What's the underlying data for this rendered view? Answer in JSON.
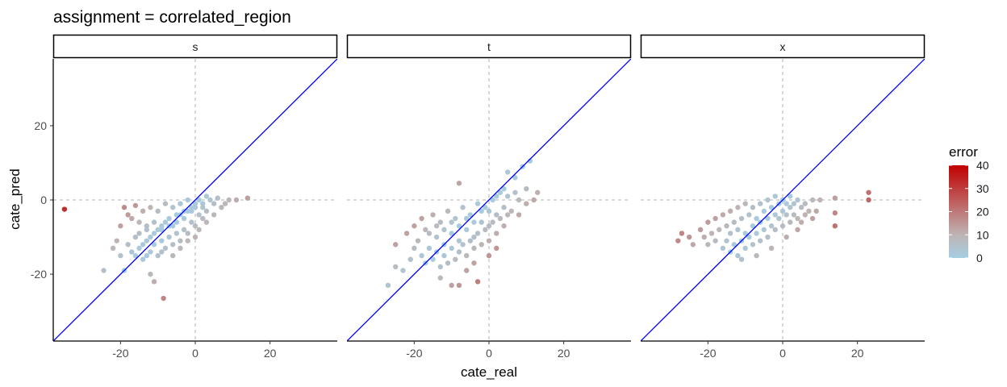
{
  "chart_data": {
    "type": "scatter",
    "title": "assignment = correlated_region",
    "xlabel": "cate_real",
    "ylabel": "cate_pred",
    "xlim": [
      -38,
      38
    ],
    "ylim": [
      -38,
      38
    ],
    "x_ticks": [
      -20,
      0,
      20
    ],
    "y_ticks": [
      -20,
      0,
      20
    ],
    "x_tick_labels": [
      "-20",
      "0",
      "20"
    ],
    "y_tick_labels": [
      "-20",
      "0",
      "20"
    ],
    "grid": false,
    "reference_lines": {
      "vertical_x": 0,
      "horizontal_y": 0,
      "diagonal": "y = x"
    },
    "diagonal_color": "#0000ff",
    "legend": {
      "title": "error",
      "placement": "right",
      "ticks": [
        0,
        10,
        20,
        30,
        40
      ],
      "tick_labels": [
        "0",
        "10",
        "20",
        "30",
        "40"
      ],
      "range": [
        0,
        40
      ],
      "gradient": [
        "#a6cee3",
        "#c00000"
      ]
    },
    "panels": [
      {
        "facet": "s",
        "points": [
          {
            "x": -35,
            "y": -2.5
          },
          {
            "x": -8.5,
            "y": -26.5
          },
          {
            "x": -24.5,
            "y": -19
          },
          {
            "x": -19,
            "y": -19
          },
          {
            "x": -12,
            "y": -20
          },
          {
            "x": -11,
            "y": -22
          },
          {
            "x": 14,
            "y": 0.5
          },
          {
            "x": 11,
            "y": 0
          },
          {
            "x": -20,
            "y": -7
          },
          {
            "x": -19,
            "y": -2
          },
          {
            "x": -18,
            "y": -4
          },
          {
            "x": -17,
            "y": -5
          },
          {
            "x": -16,
            "y": -1.5
          },
          {
            "x": -15,
            "y": -6
          },
          {
            "x": -14,
            "y": -3
          },
          {
            "x": -13,
            "y": -8
          },
          {
            "x": -12,
            "y": -2
          },
          {
            "x": -11,
            "y": -6
          },
          {
            "x": -10,
            "y": -3
          },
          {
            "x": -9,
            "y": -8
          },
          {
            "x": -8,
            "y": -1
          },
          {
            "x": -7,
            "y": -5
          },
          {
            "x": -6,
            "y": -2
          },
          {
            "x": -5,
            "y": -6
          },
          {
            "x": -4,
            "y": -1
          },
          {
            "x": -3,
            "y": -3
          },
          {
            "x": -2,
            "y": 0
          },
          {
            "x": -1,
            "y": -2
          },
          {
            "x": 0,
            "y": -1
          },
          {
            "x": 1,
            "y": 0
          },
          {
            "x": 2,
            "y": -1
          },
          {
            "x": 3,
            "y": 1
          },
          {
            "x": 4,
            "y": 0
          },
          {
            "x": 5,
            "y": -1
          },
          {
            "x": 6,
            "y": 0.5
          },
          {
            "x": 8,
            "y": -1
          },
          {
            "x": -18,
            "y": -12
          },
          {
            "x": -17,
            "y": -14
          },
          {
            "x": -16,
            "y": -10
          },
          {
            "x": -15,
            "y": -13
          },
          {
            "x": -14,
            "y": -16
          },
          {
            "x": -13,
            "y": -11
          },
          {
            "x": -12,
            "y": -14
          },
          {
            "x": -11,
            "y": -12
          },
          {
            "x": -10,
            "y": -15
          },
          {
            "x": -9,
            "y": -11
          },
          {
            "x": -8,
            "y": -13
          },
          {
            "x": -7,
            "y": -10
          },
          {
            "x": -6,
            "y": -12
          },
          {
            "x": -5,
            "y": -9
          },
          {
            "x": -4,
            "y": -11
          },
          {
            "x": -3,
            "y": -8
          },
          {
            "x": -2,
            "y": -9
          },
          {
            "x": -1,
            "y": -6
          },
          {
            "x": 0,
            "y": -7
          },
          {
            "x": 1,
            "y": -4
          },
          {
            "x": 2,
            "y": -5
          },
          {
            "x": 3,
            "y": -3
          },
          {
            "x": -15,
            "y": -9
          },
          {
            "x": -13,
            "y": -7
          },
          {
            "x": -11,
            "y": -9
          },
          {
            "x": -9,
            "y": -7
          },
          {
            "x": -7,
            "y": -7
          },
          {
            "x": -5,
            "y": -4
          },
          {
            "x": -3,
            "y": -5
          },
          {
            "x": -1,
            "y": -3
          },
          {
            "x": -12,
            "y": -10
          },
          {
            "x": -10,
            "y": -8
          },
          {
            "x": -8,
            "y": -6
          },
          {
            "x": -6,
            "y": -7
          },
          {
            "x": -4,
            "y": -4
          },
          {
            "x": -2,
            "y": -3
          },
          {
            "x": 0,
            "y": -2
          },
          {
            "x": 2,
            "y": -2
          },
          {
            "x": -14,
            "y": -12
          },
          {
            "x": -16,
            "y": -15
          },
          {
            "x": -13,
            "y": -15
          },
          {
            "x": -9,
            "y": -14
          },
          {
            "x": -6,
            "y": -15
          },
          {
            "x": -4,
            "y": -13
          },
          {
            "x": -2,
            "y": -11
          },
          {
            "x": 0,
            "y": -10
          },
          {
            "x": 1,
            "y": -8
          },
          {
            "x": 3,
            "y": -6
          },
          {
            "x": 5,
            "y": -4
          },
          {
            "x": 7,
            "y": -2
          },
          {
            "x": 9,
            "y": 0
          },
          {
            "x": -21,
            "y": -11
          },
          {
            "x": -20,
            "y": -15
          },
          {
            "x": -22,
            "y": -13
          }
        ]
      },
      {
        "facet": "t",
        "points": [
          {
            "x": -8,
            "y": 4.5
          },
          {
            "x": -27,
            "y": -23
          },
          {
            "x": -25,
            "y": -18
          },
          {
            "x": -23,
            "y": -19
          },
          {
            "x": -13,
            "y": -21
          },
          {
            "x": -10,
            "y": -23
          },
          {
            "x": -8,
            "y": -23
          },
          {
            "x": -3,
            "y": -22
          },
          {
            "x": 11,
            "y": 10.5
          },
          {
            "x": 9,
            "y": 9
          },
          {
            "x": 7,
            "y": 6
          },
          {
            "x": 5,
            "y": 7.5
          },
          {
            "x": 10,
            "y": 3
          },
          {
            "x": 12,
            "y": 0
          },
          {
            "x": 13,
            "y": 2
          },
          {
            "x": 10,
            "y": -1
          },
          {
            "x": 8,
            "y": -4
          },
          {
            "x": -25,
            "y": -12
          },
          {
            "x": -22,
            "y": -9
          },
          {
            "x": -20,
            "y": -7
          },
          {
            "x": -18,
            "y": -5
          },
          {
            "x": -19,
            "y": -11
          },
          {
            "x": -17,
            "y": -8
          },
          {
            "x": -16,
            "y": -13
          },
          {
            "x": -15,
            "y": -4
          },
          {
            "x": -14,
            "y": -10
          },
          {
            "x": -13,
            "y": -6
          },
          {
            "x": -12,
            "y": -12
          },
          {
            "x": -11,
            "y": -3
          },
          {
            "x": -10,
            "y": -9
          },
          {
            "x": -9,
            "y": -5
          },
          {
            "x": -8,
            "y": -11
          },
          {
            "x": -7,
            "y": -2
          },
          {
            "x": -6,
            "y": -8
          },
          {
            "x": -5,
            "y": -4
          },
          {
            "x": -4,
            "y": -10
          },
          {
            "x": -3,
            "y": -1
          },
          {
            "x": -2,
            "y": -6
          },
          {
            "x": -1,
            "y": -2
          },
          {
            "x": 0,
            "y": -7
          },
          {
            "x": 1,
            "y": 0
          },
          {
            "x": 2,
            "y": -4
          },
          {
            "x": 3,
            "y": 2
          },
          {
            "x": 4,
            "y": -2
          },
          {
            "x": 5,
            "y": 1
          },
          {
            "x": 6,
            "y": -3
          },
          {
            "x": 7,
            "y": 2
          },
          {
            "x": 8,
            "y": 0
          },
          {
            "x": -18,
            "y": -15
          },
          {
            "x": -17,
            "y": -17
          },
          {
            "x": -15,
            "y": -16
          },
          {
            "x": -14,
            "y": -14
          },
          {
            "x": -13,
            "y": -18
          },
          {
            "x": -12,
            "y": -15
          },
          {
            "x": -11,
            "y": -17
          },
          {
            "x": -10,
            "y": -13
          },
          {
            "x": -9,
            "y": -16
          },
          {
            "x": -8,
            "y": -14
          },
          {
            "x": -7,
            "y": -12
          },
          {
            "x": -6,
            "y": -15
          },
          {
            "x": -5,
            "y": -11
          },
          {
            "x": -4,
            "y": -13
          },
          {
            "x": -3,
            "y": -9
          },
          {
            "x": -2,
            "y": -12
          },
          {
            "x": -1,
            "y": -8
          },
          {
            "x": 0,
            "y": -11
          },
          {
            "x": 1,
            "y": -6
          },
          {
            "x": 2,
            "y": -9
          },
          {
            "x": 3,
            "y": -5
          },
          {
            "x": 4,
            "y": -7
          },
          {
            "x": 5,
            "y": -4
          },
          {
            "x": -16,
            "y": -9
          },
          {
            "x": -14,
            "y": -7
          },
          {
            "x": -12,
            "y": -8
          },
          {
            "x": -10,
            "y": -6
          },
          {
            "x": -8,
            "y": -7
          },
          {
            "x": -6,
            "y": -5
          },
          {
            "x": -4,
            "y": -6
          },
          {
            "x": -2,
            "y": -3
          },
          {
            "x": 0,
            "y": -3
          },
          {
            "x": 2,
            "y": 1
          },
          {
            "x": 4,
            "y": 3
          },
          {
            "x": -21,
            "y": -16
          },
          {
            "x": -20,
            "y": -13
          },
          {
            "x": -6,
            "y": -19
          },
          {
            "x": -4,
            "y": -17
          },
          {
            "x": 0,
            "y": -15
          },
          {
            "x": 2,
            "y": -13
          }
        ]
      },
      {
        "facet": "x",
        "points": [
          {
            "x": 23,
            "y": 2
          },
          {
            "x": 23,
            "y": 0
          },
          {
            "x": 14,
            "y": 0.5
          },
          {
            "x": 14,
            "y": -3.5
          },
          {
            "x": 14,
            "y": -7
          },
          {
            "x": 10,
            "y": 0
          },
          {
            "x": 8,
            "y": 0
          },
          {
            "x": -28,
            "y": -11
          },
          {
            "x": -27,
            "y": -9
          },
          {
            "x": -25,
            "y": -10
          },
          {
            "x": -24,
            "y": -12
          },
          {
            "x": -22,
            "y": -8
          },
          {
            "x": -21,
            "y": -10
          },
          {
            "x": -20,
            "y": -6
          },
          {
            "x": -19,
            "y": -9
          },
          {
            "x": -18,
            "y": -5
          },
          {
            "x": -17,
            "y": -8
          },
          {
            "x": -16,
            "y": -4
          },
          {
            "x": -15,
            "y": -7
          },
          {
            "x": -14,
            "y": -3
          },
          {
            "x": -13,
            "y": -6
          },
          {
            "x": -12,
            "y": -2
          },
          {
            "x": -11,
            "y": -5
          },
          {
            "x": -10,
            "y": -1
          },
          {
            "x": -9,
            "y": -4
          },
          {
            "x": -8,
            "y": -2
          },
          {
            "x": -7,
            "y": -5
          },
          {
            "x": -6,
            "y": -1
          },
          {
            "x": -5,
            "y": -3
          },
          {
            "x": -4,
            "y": 0
          },
          {
            "x": -3,
            "y": -2
          },
          {
            "x": -2,
            "y": 1
          },
          {
            "x": -1,
            "y": -1
          },
          {
            "x": 0,
            "y": 0
          },
          {
            "x": 1,
            "y": -1
          },
          {
            "x": 2,
            "y": 1
          },
          {
            "x": 3,
            "y": -1
          },
          {
            "x": 4,
            "y": 0
          },
          {
            "x": 5,
            "y": -2
          },
          {
            "x": 6,
            "y": -1
          },
          {
            "x": 7,
            "y": -3
          },
          {
            "x": -20,
            "y": -12
          },
          {
            "x": -18,
            "y": -11
          },
          {
            "x": -16,
            "y": -13
          },
          {
            "x": -15,
            "y": -11
          },
          {
            "x": -14,
            "y": -14
          },
          {
            "x": -13,
            "y": -12
          },
          {
            "x": -12,
            "y": -15
          },
          {
            "x": -11,
            "y": -11
          },
          {
            "x": -10,
            "y": -13
          },
          {
            "x": -9,
            "y": -10
          },
          {
            "x": -8,
            "y": -12
          },
          {
            "x": -7,
            "y": -9
          },
          {
            "x": -6,
            "y": -11
          },
          {
            "x": -5,
            "y": -8
          },
          {
            "x": -4,
            "y": -10
          },
          {
            "x": -3,
            "y": -7
          },
          {
            "x": -2,
            "y": -8
          },
          {
            "x": -1,
            "y": -5
          },
          {
            "x": 0,
            "y": -7
          },
          {
            "x": 1,
            "y": -4
          },
          {
            "x": 2,
            "y": -6
          },
          {
            "x": 3,
            "y": -4
          },
          {
            "x": 4,
            "y": -5
          },
          {
            "x": 5,
            "y": -6
          },
          {
            "x": 6,
            "y": -4
          },
          {
            "x": 8,
            "y": -5
          },
          {
            "x": 9,
            "y": -3
          },
          {
            "x": -14,
            "y": -9
          },
          {
            "x": -12,
            "y": -8
          },
          {
            "x": -10,
            "y": -9
          },
          {
            "x": -8,
            "y": -7
          },
          {
            "x": -6,
            "y": -6
          },
          {
            "x": -4,
            "y": -5
          },
          {
            "x": -2,
            "y": -4
          },
          {
            "x": 0,
            "y": -3
          },
          {
            "x": 2,
            "y": -2
          },
          {
            "x": -11,
            "y": -16
          },
          {
            "x": -7,
            "y": -15
          },
          {
            "x": -3,
            "y": -13
          },
          {
            "x": 1,
            "y": -10
          },
          {
            "x": 4,
            "y": -8
          }
        ]
      }
    ]
  }
}
